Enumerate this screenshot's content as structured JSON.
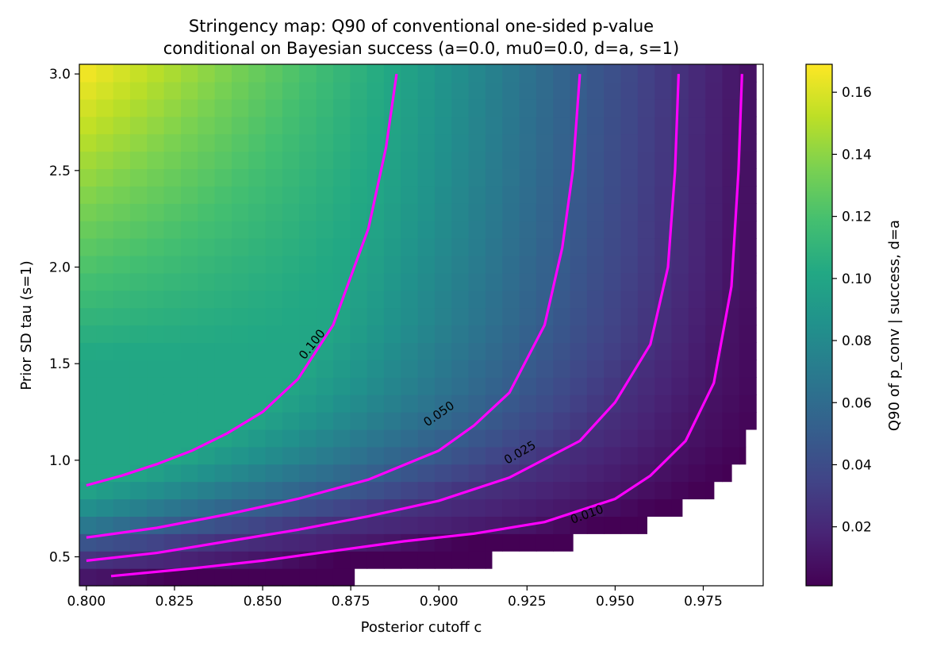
{
  "chart_data": {
    "type": "heatmap",
    "title_lines": [
      "Stringency map: Q90 of conventional one-sided p-value",
      "conditional on Bayesian success (a=0.0, mu0=0.0, d=a, s=1)"
    ],
    "xlabel": "Posterior cutoff c",
    "ylabel": "Prior SD tau (s=1)",
    "xlim": [
      0.798,
      0.992
    ],
    "ylim": [
      0.35,
      3.05
    ],
    "x_ticks": [
      0.8,
      0.825,
      0.85,
      0.875,
      0.9,
      0.925,
      0.95,
      0.975
    ],
    "x_tick_labels": [
      "0.800",
      "0.825",
      "0.850",
      "0.875",
      "0.900",
      "0.925",
      "0.950",
      "0.975"
    ],
    "y_ticks": [
      0.5,
      1.0,
      1.5,
      2.0,
      2.5,
      3.0
    ],
    "y_tick_labels": [
      "0.5",
      "1.0",
      "1.5",
      "2.0",
      "2.5",
      "3.0"
    ],
    "colormap": "viridis",
    "colorbar": {
      "label": "Q90 of p_conv | success, d=a",
      "range": [
        0.001,
        0.169
      ],
      "ticks": [
        0.02,
        0.04,
        0.06,
        0.08,
        0.1,
        0.12,
        0.14,
        0.16
      ],
      "tick_labels": [
        "0.02",
        "0.04",
        "0.06",
        "0.08",
        "0.10",
        "0.12",
        "0.14",
        "0.16"
      ]
    },
    "grid": {
      "c_start": 0.798,
      "c_step": 0.0048,
      "c_count": 40,
      "tau_start": 0.35,
      "tau_step": 0.09,
      "tau_count": 30
    },
    "boundary": [
      {
        "tau_max": 0.44,
        "c_max": 0.876
      },
      {
        "tau_max": 0.53,
        "c_max": 0.915
      },
      {
        "tau_max": 0.62,
        "c_max": 0.938
      },
      {
        "tau_max": 0.71,
        "c_max": 0.959
      },
      {
        "tau_max": 0.8,
        "c_max": 0.969
      },
      {
        "tau_max": 0.89,
        "c_max": 0.978
      },
      {
        "tau_max": 0.98,
        "c_max": 0.983
      },
      {
        "tau_max": 1.16,
        "c_max": 0.987
      },
      {
        "tau_max": 3.1,
        "c_max": 0.992
      }
    ],
    "contours": [
      {
        "level": 0.1,
        "label": "0.100",
        "label_at": [
          0.864,
          1.6
        ],
        "label_angle": -52,
        "points": [
          [
            0.8,
            0.87
          ],
          [
            0.81,
            0.92
          ],
          [
            0.82,
            0.98
          ],
          [
            0.83,
            1.05
          ],
          [
            0.84,
            1.14
          ],
          [
            0.85,
            1.25
          ],
          [
            0.86,
            1.42
          ],
          [
            0.87,
            1.7
          ],
          [
            0.88,
            2.2
          ],
          [
            0.885,
            2.62
          ],
          [
            0.888,
            3.0
          ]
        ]
      },
      {
        "level": 0.05,
        "label": "0.050",
        "label_at": [
          0.9,
          1.24
        ],
        "label_angle": -35,
        "points": [
          [
            0.8,
            0.6
          ],
          [
            0.82,
            0.65
          ],
          [
            0.84,
            0.72
          ],
          [
            0.86,
            0.8
          ],
          [
            0.88,
            0.9
          ],
          [
            0.9,
            1.05
          ],
          [
            0.91,
            1.18
          ],
          [
            0.92,
            1.35
          ],
          [
            0.93,
            1.7
          ],
          [
            0.935,
            2.1
          ],
          [
            0.938,
            2.5
          ],
          [
            0.94,
            3.0
          ]
        ]
      },
      {
        "level": 0.025,
        "label": "0.025",
        "label_at": [
          0.923,
          1.04
        ],
        "label_angle": -30,
        "points": [
          [
            0.8,
            0.48
          ],
          [
            0.82,
            0.52
          ],
          [
            0.84,
            0.58
          ],
          [
            0.86,
            0.64
          ],
          [
            0.88,
            0.71
          ],
          [
            0.9,
            0.79
          ],
          [
            0.92,
            0.91
          ],
          [
            0.94,
            1.1
          ],
          [
            0.95,
            1.3
          ],
          [
            0.96,
            1.6
          ],
          [
            0.965,
            2.0
          ],
          [
            0.967,
            2.5
          ],
          [
            0.968,
            3.0
          ]
        ]
      },
      {
        "level": 0.01,
        "label": "0.010",
        "label_at": [
          0.942,
          0.72
        ],
        "label_angle": -20,
        "points": [
          [
            0.807,
            0.4
          ],
          [
            0.83,
            0.44
          ],
          [
            0.85,
            0.48
          ],
          [
            0.87,
            0.53
          ],
          [
            0.89,
            0.58
          ],
          [
            0.91,
            0.62
          ],
          [
            0.93,
            0.68
          ],
          [
            0.95,
            0.8
          ],
          [
            0.96,
            0.92
          ],
          [
            0.97,
            1.1
          ],
          [
            0.978,
            1.4
          ],
          [
            0.983,
            1.9
          ],
          [
            0.985,
            2.5
          ],
          [
            0.986,
            3.0
          ]
        ]
      }
    ],
    "contour_color": "#ff00ff",
    "contour_label_color": "#ffff33"
  }
}
